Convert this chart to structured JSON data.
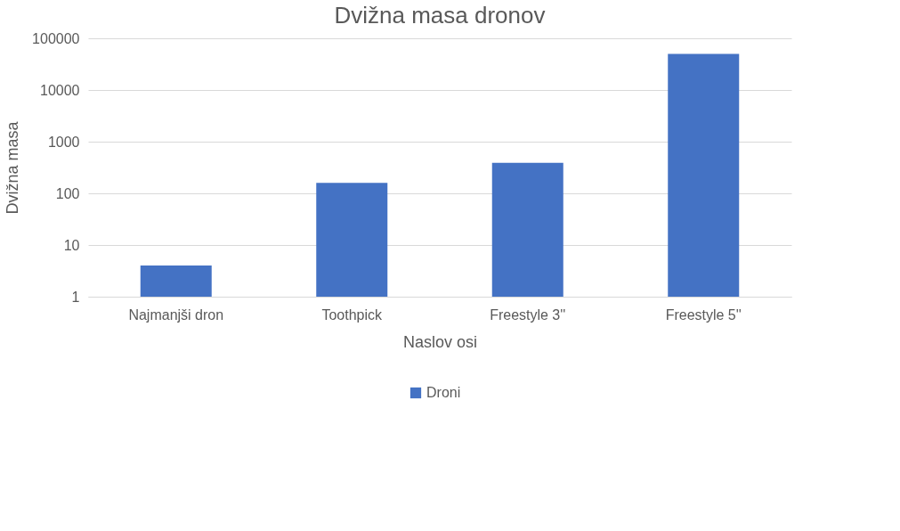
{
  "chart_data": {
    "type": "bar",
    "title": "Dvižna masa dronov",
    "xlabel": "Naslov osi",
    "ylabel": "Dvižna masa",
    "categories": [
      "Najmanjši dron",
      "Toothpick",
      "Freestyle 3''",
      "Freestyle 5''"
    ],
    "series": [
      {
        "name": "Droni",
        "color": "#4472c4",
        "values": [
          4,
          160,
          390,
          50000
        ]
      }
    ],
    "log": true,
    "ylim": [
      1,
      100000
    ],
    "yticks": [
      1,
      10,
      100,
      1000,
      10000,
      100000
    ],
    "grid": "y",
    "legend": "bottom"
  }
}
